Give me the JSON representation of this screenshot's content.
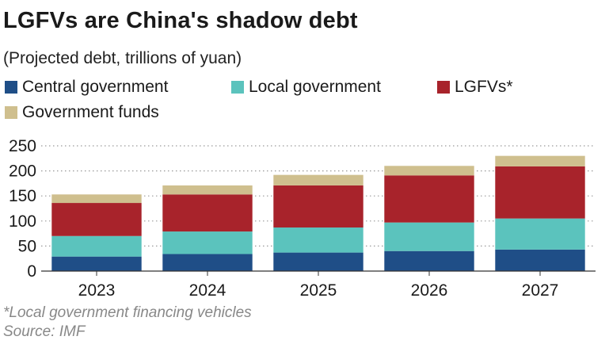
{
  "title": "LGFVs are China's shadow debt",
  "subtitle": "(Projected debt, trillions of yuan)",
  "footnote": "*Local government financing vehicles",
  "source": "Source: IMF",
  "colors": {
    "central": "#1f4e87",
    "local": "#5bc3bd",
    "lgfv": "#a8232b",
    "funds": "#cfbf8e"
  },
  "chart_data": {
    "type": "bar",
    "stacked": true,
    "categories": [
      "2023",
      "2024",
      "2025",
      "2026",
      "2027"
    ],
    "series": [
      {
        "name": "Central government",
        "color": "#1f4e87",
        "values": [
          29,
          34,
          37,
          40,
          43
        ]
      },
      {
        "name": "Local government",
        "color": "#5bc3bd",
        "values": [
          41,
          45,
          50,
          57,
          62
        ]
      },
      {
        "name": "LGFVs*",
        "color": "#a8232b",
        "values": [
          66,
          74,
          84,
          94,
          104
        ]
      },
      {
        "name": "Government funds",
        "color": "#cfbf8e",
        "values": [
          17,
          18,
          21,
          19,
          21
        ]
      }
    ],
    "yticks": [
      0,
      50,
      100,
      150,
      200,
      250
    ],
    "ylim": [
      0,
      250
    ],
    "grid": true,
    "legend": "top"
  }
}
